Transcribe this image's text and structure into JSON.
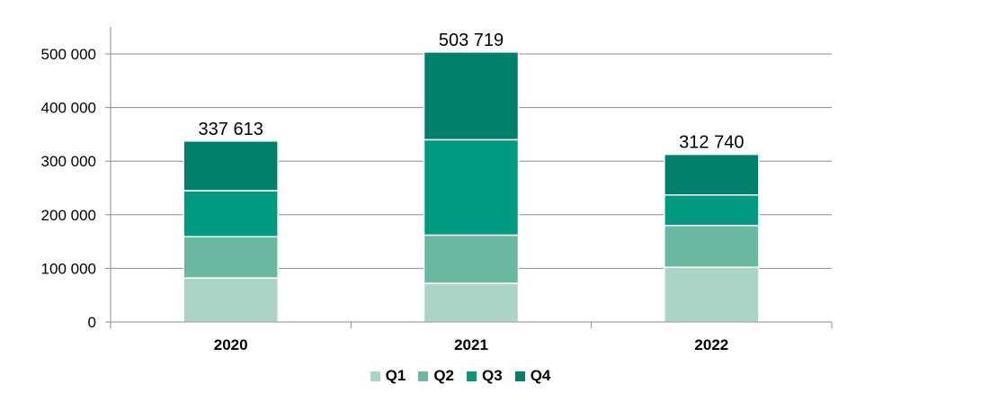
{
  "chart_data": {
    "type": "bar",
    "stacked": true,
    "categories": [
      "2020",
      "2021",
      "2022"
    ],
    "series": [
      {
        "name": "Q1",
        "color": "#abd3c6",
        "values": [
          82000,
          72000,
          102000
        ]
      },
      {
        "name": "Q2",
        "color": "#6bb8a1",
        "values": [
          77000,
          90000,
          78000
        ]
      },
      {
        "name": "Q3",
        "color": "#009a80",
        "values": [
          86000,
          178000,
          57000
        ]
      },
      {
        "name": "Q4",
        "color": "#00806a",
        "values": [
          92613,
          163719,
          75740
        ]
      }
    ],
    "totals": [
      "337 613",
      "503 719",
      "312 740"
    ],
    "y_ticks": [
      {
        "value": 0,
        "label": "0"
      },
      {
        "value": 100000,
        "label": "100 000"
      },
      {
        "value": 200000,
        "label": "200 000"
      },
      {
        "value": 300000,
        "label": "300 000"
      },
      {
        "value": 400000,
        "label": "400 000"
      },
      {
        "value": 500000,
        "label": "500 000"
      }
    ],
    "ylim": [
      0,
      500000
    ],
    "grid": true,
    "legend_position": "bottom"
  }
}
